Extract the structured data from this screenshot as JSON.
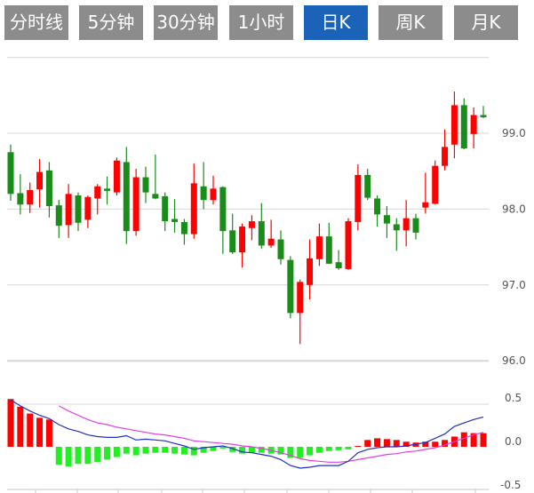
{
  "tabs": [
    {
      "label": "分时线",
      "active": false
    },
    {
      "label": "5分钟",
      "active": false
    },
    {
      "label": "30分钟",
      "active": false
    },
    {
      "label": "1小时",
      "active": false
    },
    {
      "label": "日K",
      "active": true
    },
    {
      "label": "周K",
      "active": false
    },
    {
      "label": "月K",
      "active": false
    }
  ],
  "colors": {
    "tab_bg": "#8c8c8c",
    "tab_active": "#1a63b8",
    "up": "#ff0000",
    "down": "#1a8c1a",
    "macd_up": "#ff0000",
    "macd_down": "#22ee22",
    "dif": "#1f2fc4",
    "dea": "#e040e0",
    "grid": "#d8d8d8"
  },
  "chart_data": [
    {
      "type": "candlestick",
      "ylim": [
        96.0,
        100.0
      ],
      "yticks": [
        "99.0",
        "98.0",
        "97.0",
        "96.0"
      ],
      "ytick_values": [
        99.0,
        98.0,
        97.0,
        96.0
      ],
      "grid": true,
      "candles": [
        [
          98.75,
          98.2,
          98.85,
          98.11
        ],
        [
          98.21,
          98.06,
          98.46,
          97.93
        ],
        [
          98.06,
          98.25,
          98.35,
          97.95
        ],
        [
          98.26,
          98.49,
          98.66,
          98.02
        ],
        [
          98.51,
          98.04,
          98.62,
          97.89
        ],
        [
          98.05,
          97.78,
          98.12,
          97.62
        ],
        [
          97.79,
          98.2,
          98.33,
          97.62
        ],
        [
          98.18,
          97.82,
          98.22,
          97.71
        ],
        [
          97.86,
          98.16,
          98.18,
          97.75
        ],
        [
          98.14,
          98.3,
          98.33,
          97.93
        ],
        [
          98.27,
          98.24,
          98.43,
          98.06
        ],
        [
          98.22,
          98.64,
          98.68,
          98.18
        ],
        [
          98.62,
          97.71,
          98.82,
          97.54
        ],
        [
          97.71,
          98.42,
          98.53,
          97.65
        ],
        [
          98.42,
          98.22,
          98.56,
          98.08
        ],
        [
          98.2,
          98.14,
          98.72,
          98.13
        ],
        [
          98.17,
          97.84,
          98.22,
          97.71
        ],
        [
          97.87,
          97.83,
          98.13,
          97.69
        ],
        [
          97.83,
          97.67,
          97.87,
          97.53
        ],
        [
          97.67,
          98.34,
          98.6,
          97.61
        ],
        [
          98.3,
          98.12,
          98.62,
          98.0
        ],
        [
          98.12,
          98.27,
          98.44,
          98.06
        ],
        [
          98.29,
          97.71,
          98.3,
          97.41
        ],
        [
          97.72,
          97.43,
          97.94,
          97.41
        ],
        [
          97.43,
          97.77,
          97.81,
          97.23
        ],
        [
          97.75,
          97.84,
          97.92,
          97.59
        ],
        [
          97.84,
          97.52,
          98.08,
          97.48
        ],
        [
          97.52,
          97.61,
          97.86,
          97.49
        ],
        [
          97.6,
          97.34,
          97.72,
          97.27
        ],
        [
          97.33,
          96.63,
          97.38,
          96.56
        ],
        [
          96.63,
          97.04,
          97.07,
          96.22
        ],
        [
          97.0,
          97.35,
          97.6,
          96.81
        ],
        [
          97.34,
          97.64,
          97.81,
          97.25
        ],
        [
          97.64,
          97.28,
          97.82,
          97.28
        ],
        [
          97.3,
          97.22,
          97.46,
          97.2
        ],
        [
          97.21,
          97.84,
          97.88,
          97.2
        ],
        [
          97.83,
          98.45,
          98.59,
          97.72
        ],
        [
          98.45,
          98.15,
          98.53,
          98.12
        ],
        [
          98.14,
          97.93,
          98.18,
          97.77
        ],
        [
          97.92,
          97.81,
          98.04,
          97.62
        ],
        [
          97.8,
          97.72,
          97.88,
          97.45
        ],
        [
          97.72,
          97.88,
          98.12,
          97.51
        ],
        [
          97.88,
          97.69,
          97.94,
          97.6
        ],
        [
          98.02,
          98.09,
          98.48,
          97.94
        ],
        [
          98.07,
          98.57,
          98.64,
          98.06
        ],
        [
          98.57,
          98.82,
          99.05,
          98.51
        ],
        [
          98.85,
          99.37,
          99.55,
          98.67
        ],
        [
          99.37,
          98.8,
          99.46,
          98.79
        ],
        [
          98.99,
          99.24,
          99.34,
          98.8
        ],
        [
          99.24,
          99.21,
          99.36,
          99.2
        ]
      ],
      "candle_fields": [
        "open",
        "close",
        "high",
        "low"
      ]
    },
    {
      "type": "bar+line",
      "ylim": [
        -0.5,
        0.5
      ],
      "yticks": [
        "0.5",
        "0.0",
        "-0.5"
      ],
      "ytick_values": [
        0.5,
        0.0,
        -0.5
      ],
      "macd": [
        0.56,
        0.47,
        0.39,
        0.34,
        0.32,
        -0.21,
        -0.23,
        -0.2,
        -0.2,
        -0.18,
        -0.15,
        -0.12,
        -0.08,
        -0.1,
        -0.08,
        -0.07,
        -0.07,
        -0.08,
        -0.09,
        -0.1,
        -0.07,
        -0.05,
        -0.02,
        -0.06,
        -0.08,
        -0.07,
        -0.07,
        -0.08,
        -0.09,
        -0.13,
        -0.13,
        -0.1,
        -0.07,
        -0.05,
        -0.04,
        -0.03,
        0.01,
        0.08,
        0.1,
        0.09,
        0.08,
        0.06,
        0.05,
        0.06,
        0.06,
        0.08,
        0.12,
        0.17,
        0.16,
        0.16
      ],
      "dif": [
        0.55,
        0.48,
        0.42,
        0.37,
        0.33,
        0.26,
        0.21,
        0.18,
        0.14,
        0.12,
        0.11,
        0.11,
        0.13,
        0.08,
        0.09,
        0.08,
        0.07,
        0.04,
        0.01,
        -0.03,
        -0.01,
        0.0,
        0.01,
        -0.02,
        -0.06,
        -0.07,
        -0.09,
        -0.11,
        -0.15,
        -0.22,
        -0.25,
        -0.24,
        -0.22,
        -0.22,
        -0.22,
        -0.17,
        -0.07,
        -0.03,
        -0.01,
        0.0,
        0.0,
        0.01,
        0.03,
        0.05,
        0.1,
        0.15,
        0.24,
        0.28,
        0.32,
        0.35
      ],
      "dea": [
        null,
        null,
        null,
        null,
        null,
        0.48,
        0.42,
        0.37,
        0.32,
        0.28,
        0.26,
        0.23,
        0.21,
        0.19,
        0.17,
        0.15,
        0.14,
        0.12,
        0.1,
        0.07,
        0.06,
        0.05,
        0.04,
        0.03,
        0.01,
        0.0,
        -0.02,
        -0.04,
        -0.07,
        -0.1,
        -0.14,
        -0.16,
        -0.17,
        -0.18,
        -0.18,
        -0.17,
        -0.15,
        -0.13,
        -0.11,
        -0.09,
        -0.08,
        -0.06,
        -0.05,
        -0.03,
        -0.01,
        0.02,
        0.06,
        0.1,
        0.14,
        0.17
      ]
    }
  ]
}
